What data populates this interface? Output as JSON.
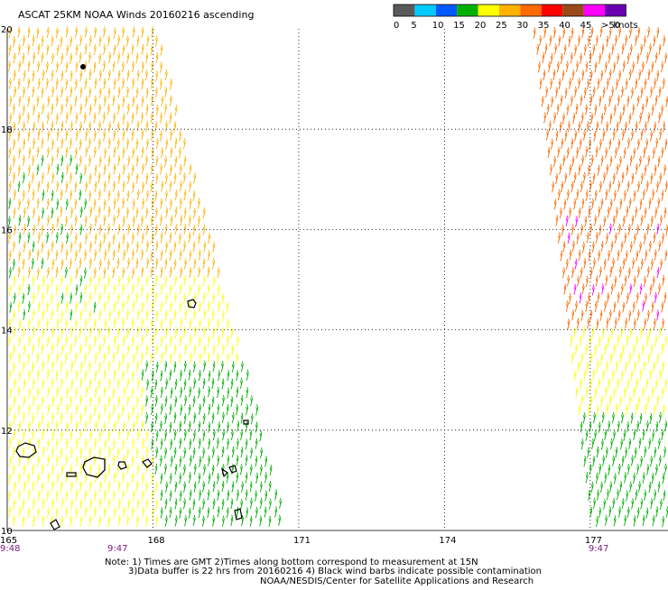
{
  "title": "ASCAT 25KM NOAA Winds 20160216 ascending",
  "legend": {
    "unit": "knots",
    "items": [
      {
        "label": "0",
        "color": "#5a5a5a"
      },
      {
        "label": "5",
        "color": "#00cbff"
      },
      {
        "label": "10",
        "color": "#005aff"
      },
      {
        "label": "15",
        "color": "#00b000"
      },
      {
        "label": "20",
        "color": "#ffff00"
      },
      {
        "label": "25",
        "color": "#ffb300"
      },
      {
        "label": "30",
        "color": "#ff6a00"
      },
      {
        "label": "35",
        "color": "#ff0000"
      },
      {
        "label": "40",
        "color": "#9a4a1a"
      },
      {
        "label": "45",
        "color": "#ff00ff"
      },
      {
        "label": ">50",
        "color": "#6a00b0"
      }
    ]
  },
  "map": {
    "lon_min": 165,
    "lon_max": 178.6,
    "lat_min": 10,
    "lat_max": 20,
    "lat_ticks": [
      "20",
      "18",
      "16",
      "14",
      "12",
      "10"
    ],
    "lon_ticks": [
      "165",
      "168",
      "171",
      "174",
      "177"
    ],
    "pass_times": [
      {
        "label": "9:48",
        "lon": 165
      },
      {
        "label": "9:47",
        "lon": 167.1
      },
      {
        "label": "9:47",
        "lon": 177
      }
    ]
  },
  "swaths": [
    {
      "name": "west-pass",
      "west_edge": [
        [
          165,
          20
        ],
        [
          165,
          10
        ]
      ],
      "east_edge": [
        [
          168.1,
          20
        ],
        [
          170.8,
          10
        ]
      ],
      "regions": [
        {
          "lat_from": 20,
          "lat_to": 15.0,
          "color": "#ffb300"
        },
        {
          "lat_from": 15.0,
          "lat_to": 13.4,
          "color": "#ffff00"
        },
        {
          "lat_from": 13.4,
          "lat_to": 10,
          "color": "#ffff00",
          "east_color": "#00b000"
        }
      ]
    },
    {
      "name": "east-pass",
      "west_edge": [
        [
          175.8,
          20
        ],
        [
          177.0,
          10
        ]
      ],
      "east_edge": [
        [
          178.6,
          20
        ],
        [
          178.6,
          10
        ]
      ],
      "regions": [
        {
          "lat_from": 20,
          "lat_to": 16.0,
          "color": "#ff6a00"
        },
        {
          "lat_from": 16.0,
          "lat_to": 14.0,
          "color": "#ff6a00"
        },
        {
          "lat_from": 14.0,
          "lat_to": 12.3,
          "color": "#ffff00"
        },
        {
          "lat_from": 12.3,
          "lat_to": 10,
          "color": "#00b000"
        }
      ]
    }
  ],
  "notes": [
    "Note: 1) Times are GMT 2)Times along bottom correspond to measurement at 15N",
    "3)Data buffer is 22 hrs from 20160216 4) Black wind barbs indicate possible contamination",
    "NOAA/NESDIS/Center for Satellite Applications and Research"
  ]
}
